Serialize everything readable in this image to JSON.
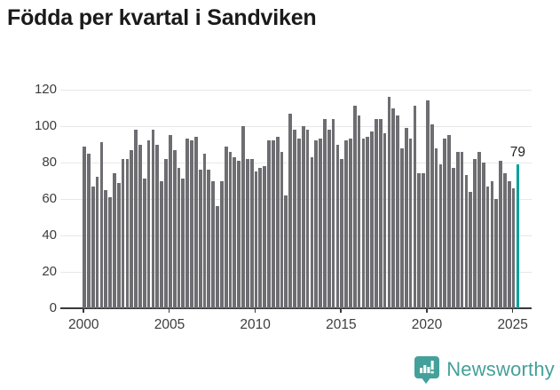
{
  "title": "Födda per kvartal i Sandviken",
  "branding": {
    "name": "Newsworthy",
    "logo_icon": "bar-chart-speech-bubble-icon"
  },
  "annotation": {
    "last_value_label": "79"
  },
  "colors": {
    "bar": "#6d6d72",
    "highlight": "#00a19b",
    "logo": "#44a09a",
    "gridline": "#e7e7e7",
    "axis": "#3a3a3a",
    "text": "#3d3d3d",
    "title": "#1a1a1a"
  },
  "chart_data": {
    "type": "bar",
    "title": "Födda per kvartal i Sandviken",
    "xlabel": "",
    "ylabel": "",
    "x_start": "2000 Q1",
    "x_end": "2025 Q2",
    "frequency": "quarterly",
    "x_tick_labels": [
      "2000",
      "2005",
      "2010",
      "2015",
      "2020",
      "2025"
    ],
    "x_tick_indices": [
      0,
      20,
      40,
      60,
      80,
      100
    ],
    "y_ticks": [
      0,
      20,
      40,
      60,
      80,
      100,
      120
    ],
    "ylim": [
      0,
      120
    ],
    "grid": true,
    "legend": false,
    "highlight_index": 101,
    "values": [
      89,
      85,
      67,
      72,
      91,
      65,
      61,
      74,
      69,
      82,
      82,
      87,
      98,
      90,
      71,
      92,
      98,
      90,
      70,
      82,
      95,
      87,
      77,
      71,
      93,
      92,
      94,
      76,
      85,
      76,
      70,
      56,
      70,
      89,
      86,
      83,
      81,
      100,
      82,
      82,
      75,
      77,
      78,
      92,
      92,
      94,
      86,
      62,
      107,
      98,
      93,
      100,
      98,
      83,
      92,
      93,
      104,
      98,
      104,
      90,
      82,
      92,
      93,
      111,
      106,
      93,
      94,
      97,
      104,
      104,
      96,
      116,
      110,
      106,
      88,
      99,
      93,
      111,
      74,
      74,
      114,
      101,
      88,
      79,
      93,
      95,
      77,
      86,
      86,
      73,
      64,
      82,
      86,
      80,
      67,
      70,
      60,
      81,
      74,
      70,
      66,
      79
    ]
  }
}
